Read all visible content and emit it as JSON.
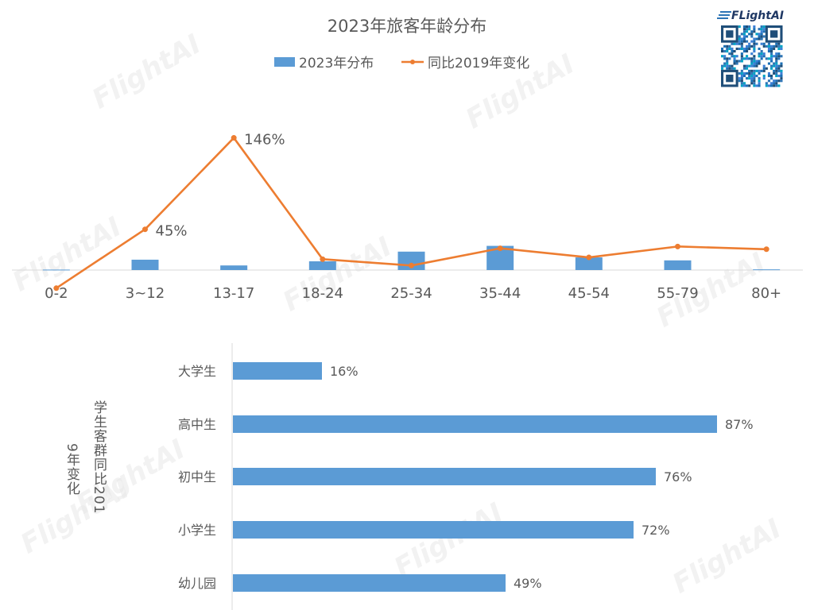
{
  "brand": {
    "name": "FLightAI",
    "watermark": "FlightAI"
  },
  "colors": {
    "bar": "#5b9bd5",
    "line": "#ed7d31",
    "text": "#595959",
    "axis": "#d9d9d9",
    "watermark": "#e8e8e8"
  },
  "icons": {
    "qr": "qr-code-icon",
    "logo": "flightai-logo-icon"
  },
  "chart_data": [
    {
      "type": "bar+line",
      "title": "2023年旅客年龄分布",
      "categories": [
        "0-2",
        "3~12",
        "13-17",
        "18-24",
        "25-34",
        "35-44",
        "45-54",
        "55-79",
        "80+"
      ],
      "series": [
        {
          "name": "2023年分布",
          "type": "bar",
          "values": [
            0.2,
            4.5,
            2.0,
            3.8,
            8.0,
            10.5,
            5.5,
            4.2,
            0.3
          ]
        },
        {
          "name": "同比2019年变化",
          "type": "line",
          "values": [
            -20,
            45,
            146,
            12,
            5,
            24,
            14,
            26,
            23
          ]
        }
      ],
      "data_labels": [
        {
          "category": "3~12",
          "text": "45%"
        },
        {
          "category": "13-17",
          "text": "146%"
        }
      ],
      "legend_position": "top",
      "grid": false
    },
    {
      "type": "bar",
      "orientation": "horizontal",
      "ylabel": "学生客群同比2019年变化",
      "categories": [
        "大学生",
        "高中生",
        "初中生",
        "小学生",
        "幼儿园"
      ],
      "values": [
        16,
        87,
        76,
        72,
        49
      ],
      "value_labels": [
        "16%",
        "87%",
        "76%",
        "72%",
        "49%"
      ],
      "xlim": [
        0,
        100
      ],
      "grid": false
    }
  ]
}
